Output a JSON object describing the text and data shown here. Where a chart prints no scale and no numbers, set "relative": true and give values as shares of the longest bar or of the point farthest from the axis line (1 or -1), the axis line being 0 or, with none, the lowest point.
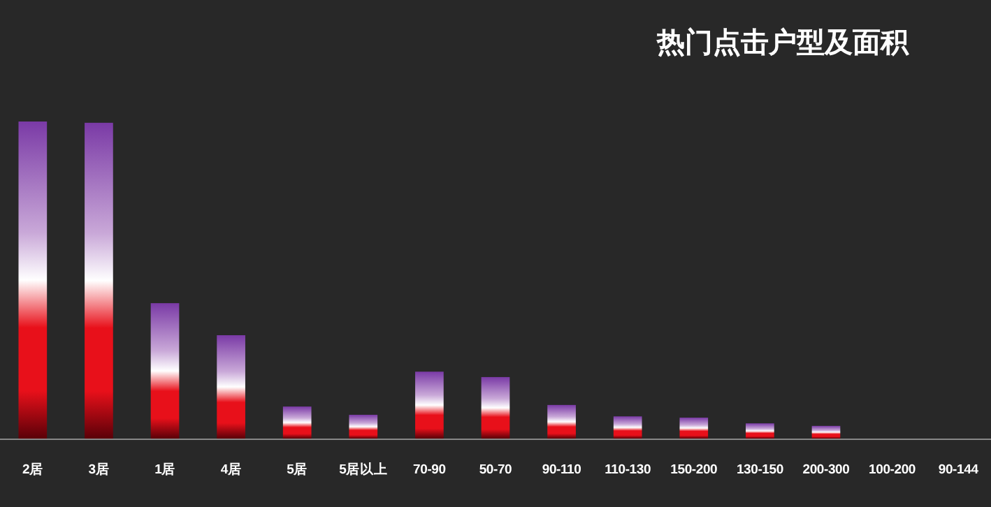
{
  "chart_data": {
    "type": "bar",
    "title": "热门点击户型及面积",
    "relative": true,
    "color": "#e8101a",
    "categories": [
      "2居",
      "3居",
      "1居",
      "4居",
      "5居",
      "5居以上",
      "70-90",
      "50-70",
      "90-110",
      "110-130",
      "150-200",
      "130-150",
      "200-300",
      "100-200",
      "90-144"
    ],
    "values": [
      1,
      0.996,
      0.427,
      0.326,
      0.101,
      0.075,
      0.211,
      0.194,
      0.106,
      0.07,
      0.066,
      0.048,
      0.04,
      0,
      0
    ]
  }
}
